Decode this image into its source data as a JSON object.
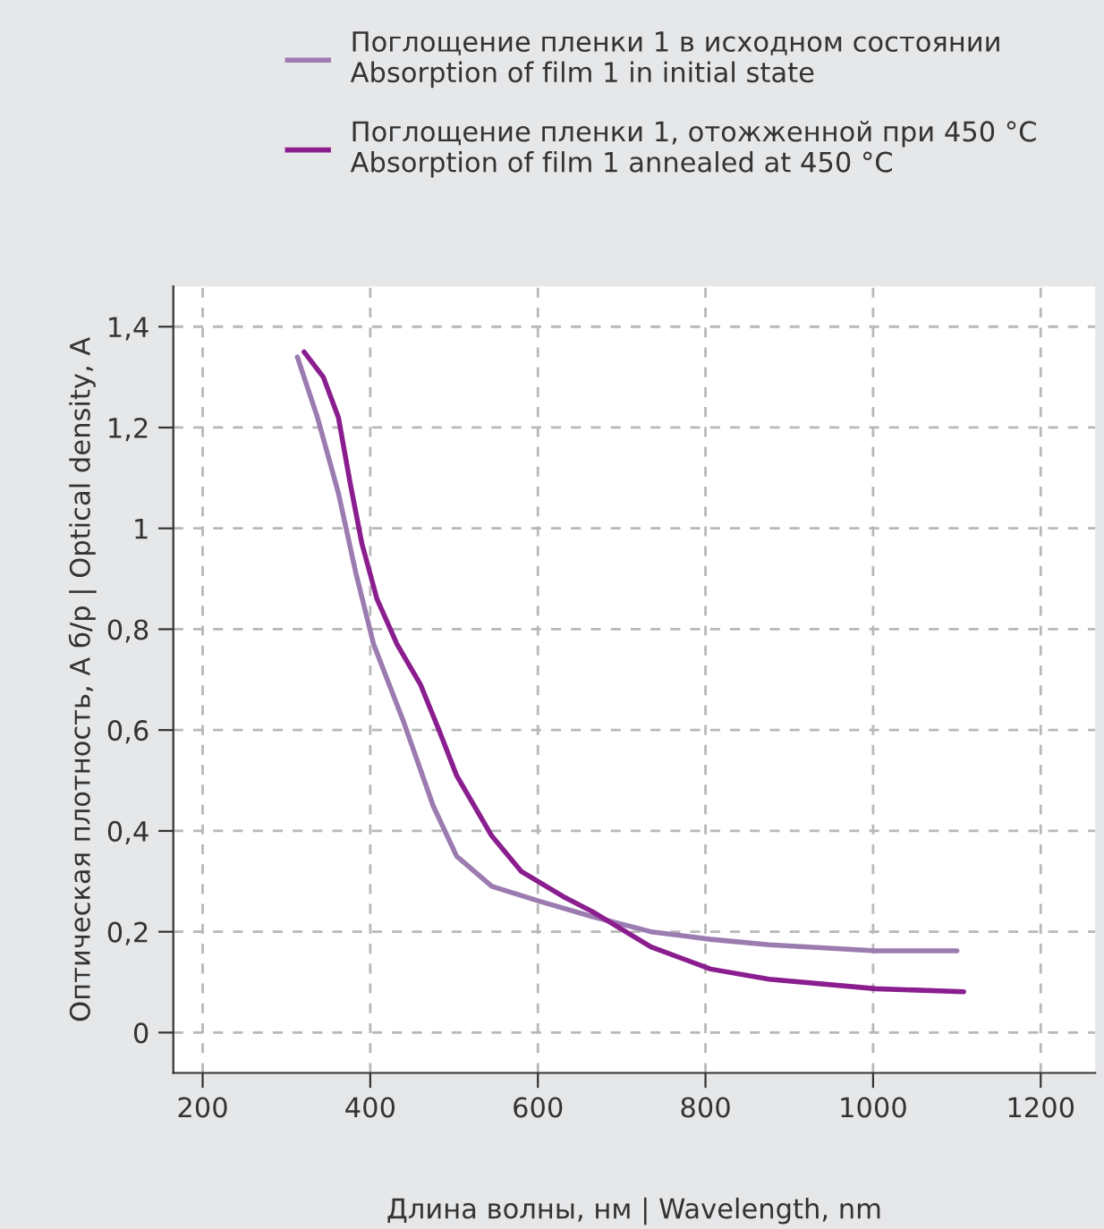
{
  "chart_data": {
    "type": "line",
    "xlabel": "Длина волны, нм | Wavelength, nm",
    "ylabel": "Оптическая плотность, А б/р | Optical density, A",
    "series": [
      {
        "name": "Поглощение пленки 1 в исходном состоянии\nAbsorption of film 1 in initial state",
        "color": "#9b7bb0",
        "x": [
          313,
          337,
          362,
          383,
          404,
          439,
          475,
          503,
          545,
          603,
          665,
          735,
          806,
          876,
          1003,
          1100
        ],
        "values": [
          1.34,
          1.22,
          1.07,
          0.91,
          0.77,
          0.62,
          0.45,
          0.35,
          0.29,
          0.26,
          0.23,
          0.2,
          0.185,
          0.174,
          0.162,
          0.162
        ]
      },
      {
        "name": "Поглощение пленки 1, отожженной при 450 °C\nAbsorption of film 1 annealed at 450 °C",
        "color": "#8b1e8f",
        "x": [
          321,
          344,
          362,
          376,
          390,
          408,
          432,
          460,
          482,
          503,
          545,
          580,
          630,
          665,
          735,
          806,
          876,
          1003,
          1108
        ],
        "values": [
          1.35,
          1.3,
          1.22,
          1.09,
          0.97,
          0.86,
          0.77,
          0.69,
          0.6,
          0.51,
          0.39,
          0.32,
          0.27,
          0.24,
          0.17,
          0.126,
          0.106,
          0.087,
          0.081
        ]
      }
    ],
    "xlim": [
      165,
      1265
    ],
    "xticks": [
      200,
      400,
      600,
      800,
      1000,
      1200
    ],
    "ylim": [
      -0.08,
      1.48
    ],
    "yticks": [
      0,
      {
        "value": 0.2,
        "label": "0,2"
      },
      {
        "value": 0.4,
        "label": "0,4"
      },
      {
        "value": 0.6,
        "label": "0,6"
      },
      {
        "value": 0.8,
        "label": "0,8"
      },
      1,
      {
        "value": 1.2,
        "label": "1,2"
      },
      {
        "value": 1.4,
        "label": "1,4"
      }
    ],
    "grid": true,
    "legend": "top",
    "marker": "none",
    "line_style": "solid"
  }
}
